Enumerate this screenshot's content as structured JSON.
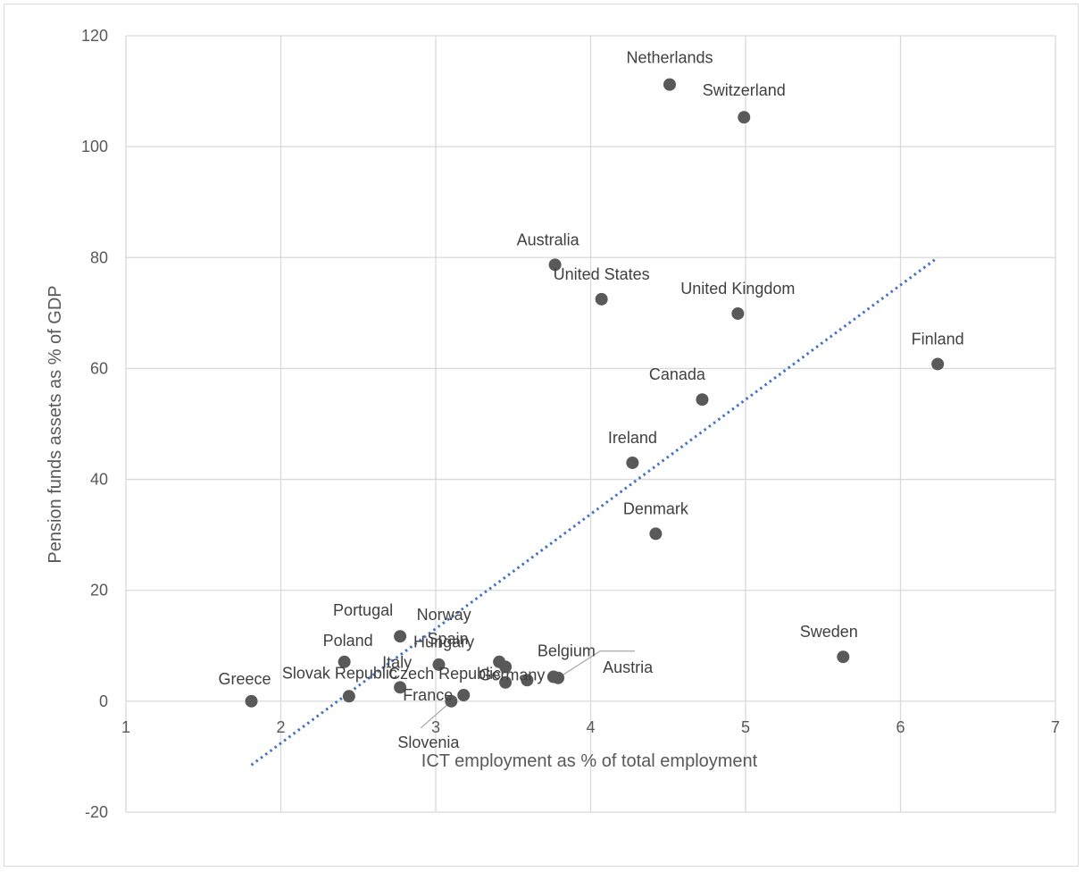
{
  "chart_data": {
    "type": "scatter",
    "title": "",
    "xlabel": "ICT employment as  % of total employment",
    "ylabel": "Pension funds assets as % of GDP",
    "xlim": [
      1,
      7
    ],
    "ylim": [
      -20,
      120
    ],
    "xticks": [
      "1",
      "2",
      "3",
      "4",
      "5",
      "6",
      "7"
    ],
    "yticks": [
      "-20",
      "0",
      "20",
      "40",
      "60",
      "80",
      "100",
      "120"
    ],
    "grid": true,
    "legend": "none",
    "colors": {
      "marker": "#595959",
      "trendline": "#4472c4",
      "grid": "#d9d9d9",
      "leader": "#a6a6a6"
    },
    "trendline": {
      "style": "dotted",
      "x": [
        1.81,
        6.24
      ],
      "y": [
        -11.5,
        80
      ]
    },
    "points": [
      {
        "label": "Netherlands",
        "x": 4.51,
        "y": 111.2
      },
      {
        "label": "Switzerland",
        "x": 4.99,
        "y": 105.3
      },
      {
        "label": "Australia",
        "x": 3.77,
        "y": 78.7
      },
      {
        "label": "United States",
        "x": 4.07,
        "y": 72.5
      },
      {
        "label": "United Kingdom",
        "x": 4.95,
        "y": 69.9
      },
      {
        "label": "Finland",
        "x": 6.24,
        "y": 60.8
      },
      {
        "label": "Canada",
        "x": 4.72,
        "y": 54.4
      },
      {
        "label": "Ireland",
        "x": 4.27,
        "y": 43.0
      },
      {
        "label": "Denmark",
        "x": 4.42,
        "y": 30.2
      },
      {
        "label": "Sweden",
        "x": 5.63,
        "y": 8.0
      },
      {
        "label": "Portugal",
        "x": 2.77,
        "y": 11.7
      },
      {
        "label": "Poland",
        "x": 2.41,
        "y": 7.1
      },
      {
        "label": "Spain",
        "x": 3.02,
        "y": 6.6
      },
      {
        "label": "Norway",
        "x": 3.41,
        "y": 7.1
      },
      {
        "label": "Hungary",
        "x": 3.45,
        "y": 6.2
      },
      {
        "label": "Germany",
        "x": 3.59,
        "y": 3.8
      },
      {
        "label": "Czech Republic",
        "x": 3.45,
        "y": 3.4
      },
      {
        "label": "Belgium",
        "x": 3.76,
        "y": 4.4
      },
      {
        "label": "Austria",
        "x": 3.79,
        "y": 4.2
      },
      {
        "label": "Italy",
        "x": 2.77,
        "y": 2.5
      },
      {
        "label": "Slovak Republic",
        "x": 2.44,
        "y": 0.9
      },
      {
        "label": "France",
        "x": 3.18,
        "y": 1.1
      },
      {
        "label": "Slovenia",
        "x": 3.1,
        "y": 0.0
      },
      {
        "label": "Greece",
        "x": 1.81,
        "y": 0.0
      }
    ]
  }
}
